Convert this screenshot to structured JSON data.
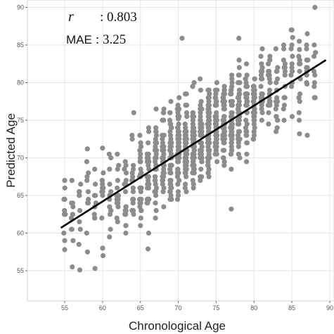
{
  "chart_data": {
    "type": "scatter",
    "title": "",
    "xlabel": "Chronological Age",
    "ylabel": "Predicted Age",
    "xlim": [
      52.5,
      92.5
    ],
    "ylim": [
      52,
      90
    ],
    "x_ticks": [
      "55",
      "60",
      "65",
      "70",
      "75",
      "80",
      "85",
      "90"
    ],
    "y_ticks": [
      "55",
      "60",
      "65",
      "70",
      "75",
      "80",
      "85",
      "90"
    ],
    "grid": true,
    "legend": "none",
    "point_color": "#8c8c8c",
    "line_color": "#000000",
    "annotations": {
      "r_symbol": "r",
      "r_value": ": 0.803",
      "mae_label": "MAE",
      "mae_value": ": 3.25"
    },
    "regression_line": {
      "x": [
        54.5,
        89.5
      ],
      "y": [
        60.7,
        83.0
      ]
    },
    "points": {
      "description": "dense point cloud (approx. 1,500+ subjects) spanning ages 55–88",
      "x_range": [
        55,
        88
      ],
      "y_range": [
        55,
        86
      ],
      "sample": [
        [
          55,
          67.0
        ],
        [
          55,
          57.8
        ],
        [
          56,
          55.5
        ],
        [
          57,
          55.1
        ],
        [
          59,
          55.3
        ],
        [
          58,
          71.2
        ],
        [
          60,
          71.3
        ],
        [
          70.5,
          85.9
        ],
        [
          78,
          85.9
        ],
        [
          85,
          85.0
        ],
        [
          86,
          84.4
        ],
        [
          87,
          79.8
        ],
        [
          86,
          73.2
        ],
        [
          77,
          63.2
        ],
        [
          66,
          57.9
        ],
        [
          62,
          64.8
        ],
        [
          70,
          75.2
        ],
        [
          75,
          72.5
        ],
        [
          80,
          78.0
        ],
        [
          65,
          67.8
        ]
      ]
    }
  }
}
